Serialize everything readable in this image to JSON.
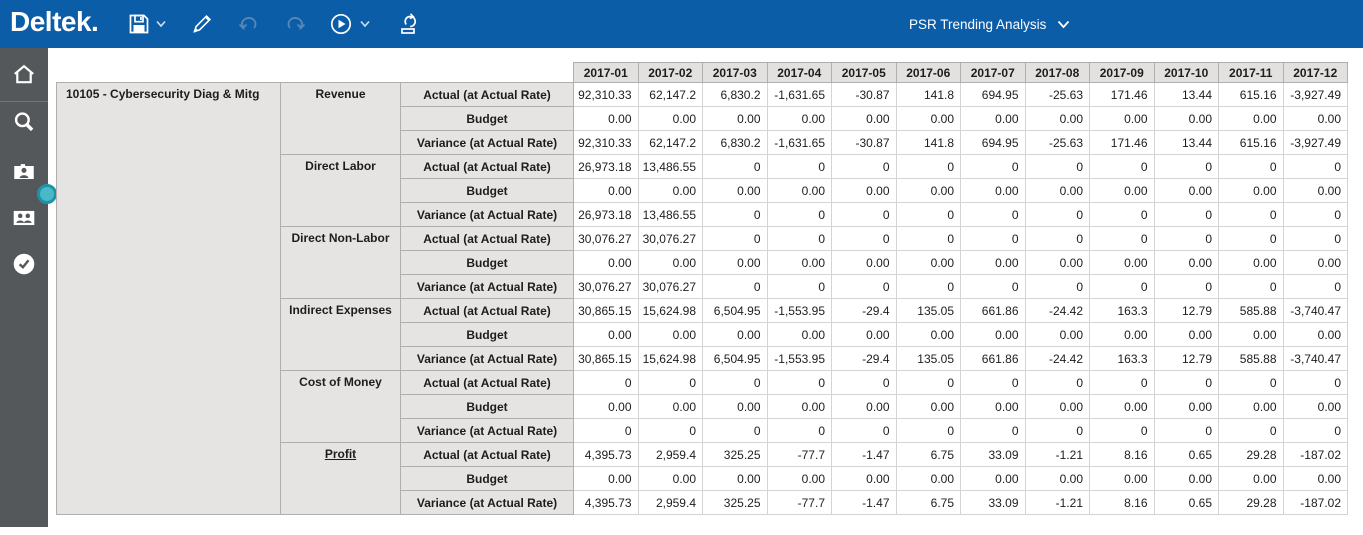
{
  "colors": {
    "topbar_blue": "#0b5da7",
    "sidebar_gray": "#54585b",
    "header_cell_bg": "#e5e3e1",
    "grid_border": "#b1aeac",
    "accent_teal": "#35adbd"
  },
  "topbar": {
    "logo": "Deltek.",
    "title": "PSR Trending Analysis",
    "toolbar_icons": [
      "save",
      "save-menu-chevron",
      "edit-pencil",
      "undo",
      "redo",
      "run",
      "run-menu-chevron",
      "refresh-export"
    ]
  },
  "sidebar": {
    "icons": [
      "home",
      "search",
      "employee-card",
      "people-card",
      "check-circle"
    ],
    "splitter": "drag-handle"
  },
  "table": {
    "project": "10105 - Cybersecurity Diag & Mitg",
    "months": [
      "2017-01",
      "2017-02",
      "2017-03",
      "2017-04",
      "2017-05",
      "2017-06",
      "2017-07",
      "2017-08",
      "2017-09",
      "2017-10",
      "2017-11",
      "2017-12"
    ],
    "groups": [
      {
        "category": "Revenue",
        "link": false,
        "rows": [
          {
            "metric": "Actual (at Actual Rate)",
            "values": [
              "92,310.33",
              "62,147.2",
              "6,830.2",
              "-1,631.65",
              "-30.87",
              "141.8",
              "694.95",
              "-25.63",
              "171.46",
              "13.44",
              "615.16",
              "-3,927.49"
            ]
          },
          {
            "metric": "Budget",
            "values": [
              "0.00",
              "0.00",
              "0.00",
              "0.00",
              "0.00",
              "0.00",
              "0.00",
              "0.00",
              "0.00",
              "0.00",
              "0.00",
              "0.00"
            ]
          },
          {
            "metric": "Variance (at Actual Rate)",
            "values": [
              "92,310.33",
              "62,147.2",
              "6,830.2",
              "-1,631.65",
              "-30.87",
              "141.8",
              "694.95",
              "-25.63",
              "171.46",
              "13.44",
              "615.16",
              "-3,927.49"
            ]
          }
        ]
      },
      {
        "category": "Direct Labor",
        "link": false,
        "rows": [
          {
            "metric": "Actual (at Actual Rate)",
            "values": [
              "26,973.18",
              "13,486.55",
              "0",
              "0",
              "0",
              "0",
              "0",
              "0",
              "0",
              "0",
              "0",
              "0"
            ]
          },
          {
            "metric": "Budget",
            "values": [
              "0.00",
              "0.00",
              "0.00",
              "0.00",
              "0.00",
              "0.00",
              "0.00",
              "0.00",
              "0.00",
              "0.00",
              "0.00",
              "0.00"
            ]
          },
          {
            "metric": "Variance (at Actual Rate)",
            "values": [
              "26,973.18",
              "13,486.55",
              "0",
              "0",
              "0",
              "0",
              "0",
              "0",
              "0",
              "0",
              "0",
              "0"
            ]
          }
        ]
      },
      {
        "category": "Direct Non-Labor",
        "link": false,
        "rows": [
          {
            "metric": "Actual (at Actual Rate)",
            "values": [
              "30,076.27",
              "30,076.27",
              "0",
              "0",
              "0",
              "0",
              "0",
              "0",
              "0",
              "0",
              "0",
              "0"
            ]
          },
          {
            "metric": "Budget",
            "values": [
              "0.00",
              "0.00",
              "0.00",
              "0.00",
              "0.00",
              "0.00",
              "0.00",
              "0.00",
              "0.00",
              "0.00",
              "0.00",
              "0.00"
            ]
          },
          {
            "metric": "Variance (at Actual Rate)",
            "values": [
              "30,076.27",
              "30,076.27",
              "0",
              "0",
              "0",
              "0",
              "0",
              "0",
              "0",
              "0",
              "0",
              "0"
            ]
          }
        ]
      },
      {
        "category": "Indirect Expenses",
        "link": false,
        "rows": [
          {
            "metric": "Actual (at Actual Rate)",
            "values": [
              "30,865.15",
              "15,624.98",
              "6,504.95",
              "-1,553.95",
              "-29.4",
              "135.05",
              "661.86",
              "-24.42",
              "163.3",
              "12.79",
              "585.88",
              "-3,740.47"
            ]
          },
          {
            "metric": "Budget",
            "values": [
              "0.00",
              "0.00",
              "0.00",
              "0.00",
              "0.00",
              "0.00",
              "0.00",
              "0.00",
              "0.00",
              "0.00",
              "0.00",
              "0.00"
            ]
          },
          {
            "metric": "Variance (at Actual Rate)",
            "values": [
              "30,865.15",
              "15,624.98",
              "6,504.95",
              "-1,553.95",
              "-29.4",
              "135.05",
              "661.86",
              "-24.42",
              "163.3",
              "12.79",
              "585.88",
              "-3,740.47"
            ]
          }
        ]
      },
      {
        "category": "Cost of Money",
        "link": false,
        "rows": [
          {
            "metric": "Actual (at Actual Rate)",
            "values": [
              "0",
              "0",
              "0",
              "0",
              "0",
              "0",
              "0",
              "0",
              "0",
              "0",
              "0",
              "0"
            ]
          },
          {
            "metric": "Budget",
            "values": [
              "0.00",
              "0.00",
              "0.00",
              "0.00",
              "0.00",
              "0.00",
              "0.00",
              "0.00",
              "0.00",
              "0.00",
              "0.00",
              "0.00"
            ]
          },
          {
            "metric": "Variance (at Actual Rate)",
            "values": [
              "0",
              "0",
              "0",
              "0",
              "0",
              "0",
              "0",
              "0",
              "0",
              "0",
              "0",
              "0"
            ]
          }
        ]
      },
      {
        "category": "Profit",
        "link": true,
        "rows": [
          {
            "metric": "Actual (at Actual Rate)",
            "values": [
              "4,395.73",
              "2,959.4",
              "325.25",
              "-77.7",
              "-1.47",
              "6.75",
              "33.09",
              "-1.21",
              "8.16",
              "0.65",
              "29.28",
              "-187.02"
            ]
          },
          {
            "metric": "Budget",
            "values": [
              "0.00",
              "0.00",
              "0.00",
              "0.00",
              "0.00",
              "0.00",
              "0.00",
              "0.00",
              "0.00",
              "0.00",
              "0.00",
              "0.00"
            ]
          },
          {
            "metric": "Variance (at Actual Rate)",
            "values": [
              "4,395.73",
              "2,959.4",
              "325.25",
              "-77.7",
              "-1.47",
              "6.75",
              "33.09",
              "-1.21",
              "8.16",
              "0.65",
              "29.28",
              "-187.02"
            ]
          }
        ]
      }
    ]
  }
}
